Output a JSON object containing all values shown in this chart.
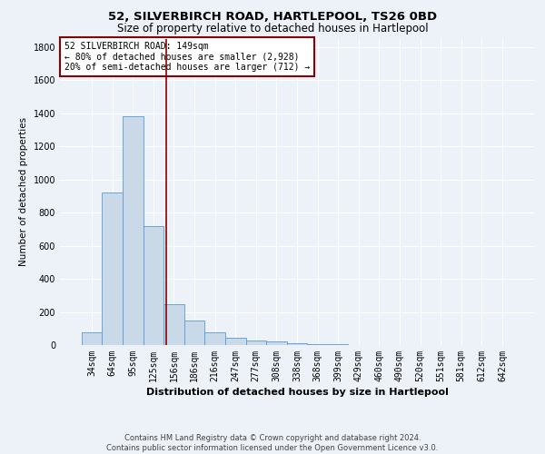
{
  "title1": "52, SILVERBIRCH ROAD, HARTLEPOOL, TS26 0BD",
  "title2": "Size of property relative to detached houses in Hartlepool",
  "xlabel": "Distribution of detached houses by size in Hartlepool",
  "ylabel": "Number of detached properties",
  "footnote": "Contains HM Land Registry data © Crown copyright and database right 2024.\nContains public sector information licensed under the Open Government Licence v3.0.",
  "categories": [
    "34sqm",
    "64sqm",
    "95sqm",
    "125sqm",
    "156sqm",
    "186sqm",
    "216sqm",
    "247sqm",
    "277sqm",
    "308sqm",
    "338sqm",
    "368sqm",
    "399sqm",
    "429sqm",
    "460sqm",
    "490sqm",
    "520sqm",
    "551sqm",
    "581sqm",
    "612sqm",
    "642sqm"
  ],
  "values": [
    75,
    920,
    1380,
    720,
    248,
    148,
    75,
    42,
    28,
    20,
    10,
    4,
    3,
    1,
    0,
    1,
    0,
    0,
    0,
    0,
    0
  ],
  "bar_color": "#c9d9e8",
  "bar_edge_color": "#5b9bd5",
  "vline_x": 3.62,
  "vline_color": "#8b0000",
  "annotation_text": "52 SILVERBIRCH ROAD: 149sqm\n← 80% of detached houses are smaller (2,928)\n20% of semi-detached houses are larger (712) →",
  "annotation_box_color": "#8b0000",
  "ylim": [
    0,
    1850
  ],
  "yticks": [
    0,
    200,
    400,
    600,
    800,
    1000,
    1200,
    1400,
    1600,
    1800
  ],
  "bg_color": "#edf1f8",
  "grid_color": "#ffffff",
  "title1_fontsize": 9.5,
  "title2_fontsize": 8.5,
  "xlabel_fontsize": 8,
  "ylabel_fontsize": 7.5,
  "tick_fontsize": 7,
  "annot_fontsize": 7,
  "footnote_fontsize": 6
}
